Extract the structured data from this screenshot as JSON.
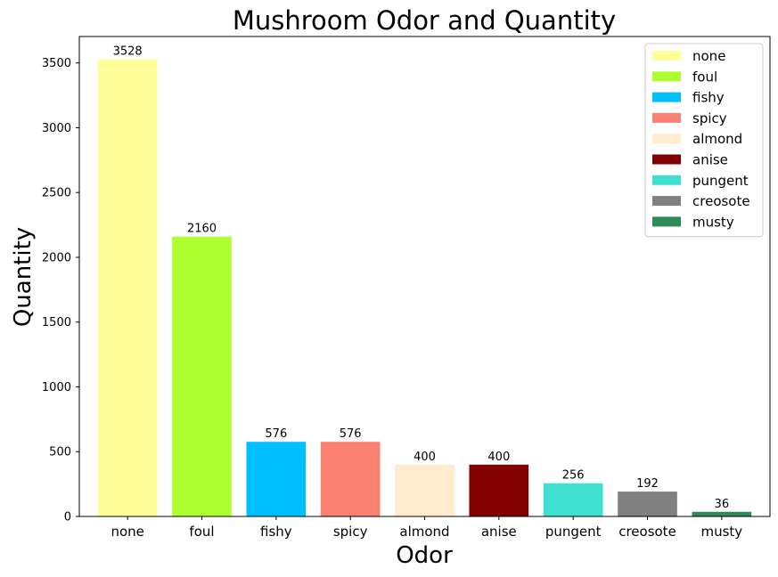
{
  "chart_data": {
    "type": "bar",
    "title": "Mushroom Odor and Quantity",
    "xlabel": "Odor",
    "ylabel": "Quantity",
    "categories": [
      "none",
      "foul",
      "fishy",
      "spicy",
      "almond",
      "anise",
      "pungent",
      "creosote",
      "musty"
    ],
    "values": [
      3528,
      2160,
      576,
      576,
      400,
      400,
      256,
      192,
      36
    ],
    "value_labels": [
      "3528",
      "2160",
      "576",
      "576",
      "400",
      "400",
      "256",
      "192",
      "36"
    ],
    "colors": [
      "#ffff99",
      "#adff2f",
      "#00bfff",
      "#fa8072",
      "#ffebcd",
      "#800000",
      "#40e0d0",
      "#808080",
      "#2e8b57"
    ],
    "ylim": [
      0,
      3704
    ],
    "yticks": [
      0,
      500,
      1000,
      1500,
      2000,
      2500,
      3000,
      3500
    ],
    "ytick_labels": [
      "0",
      "500",
      "1000",
      "1500",
      "2000",
      "2500",
      "3000",
      "3500"
    ],
    "grid": false,
    "legend": {
      "placement": "top-right",
      "entries": [
        "none",
        "foul",
        "fishy",
        "spicy",
        "almond",
        "anise",
        "pungent",
        "creosote",
        "musty"
      ]
    }
  }
}
